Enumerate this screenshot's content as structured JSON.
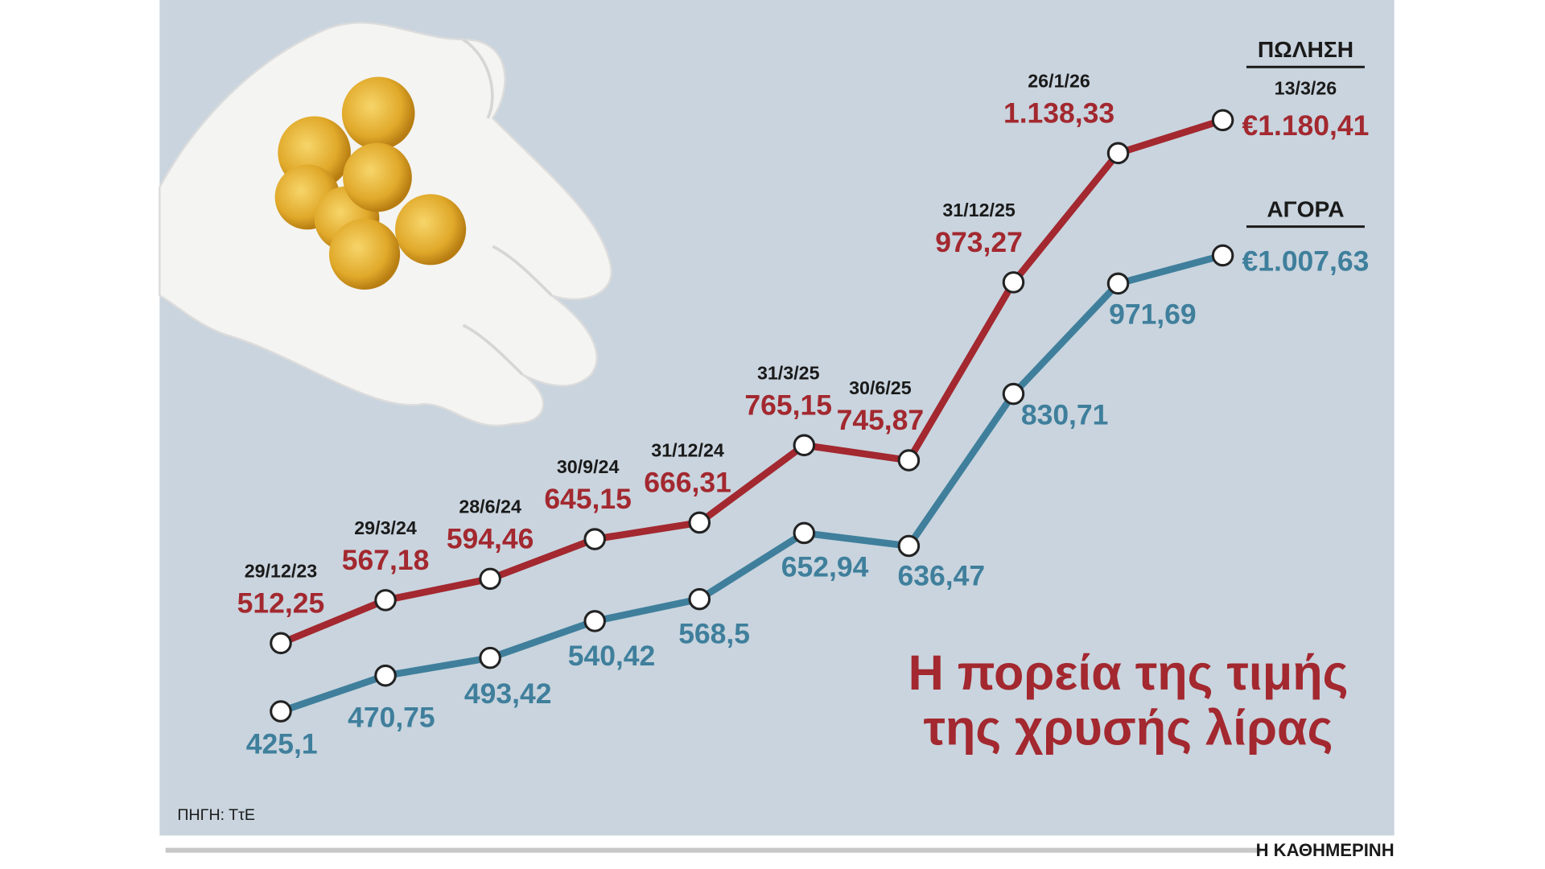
{
  "chart_data": {
    "type": "line",
    "title": "Η πορεία της τιμής της χρυσής λίρας",
    "source": "ΠΗΓΗ: ΤτΕ",
    "publisher": "Η ΚΑΘΗΜΕΡΙΝΗ",
    "categories": [
      "29/12/23",
      "29/3/24",
      "28/6/24",
      "30/9/24",
      "31/12/24",
      "31/3/25",
      "30/6/25",
      "31/12/25",
      "26/1/26",
      "13/3/26"
    ],
    "series": [
      {
        "name": "ΠΩΛΗΣΗ",
        "color": "#a3282f",
        "values": [
          512.25,
          567.18,
          594.46,
          645.15,
          666.31,
          765.15,
          745.87,
          973.27,
          1138.33,
          1180.41
        ],
        "value_labels": [
          "512,25",
          "567,18",
          "594,46",
          "645,15",
          "666,31",
          "765,15",
          "745,87",
          "973,27",
          "1.138,33",
          "€1.180,41"
        ]
      },
      {
        "name": "ΑΓΟΡΑ",
        "color": "#3f7f9c",
        "values": [
          425.1,
          470.75,
          493.42,
          540.42,
          568.5,
          652.94,
          636.47,
          830.71,
          971.69,
          1007.63
        ],
        "value_labels": [
          "425,1",
          "470,75",
          "493,42",
          "540,42",
          "568,5",
          "652,94",
          "636,47",
          "830,71",
          "971,69",
          "€1.007,63"
        ]
      }
    ]
  }
}
